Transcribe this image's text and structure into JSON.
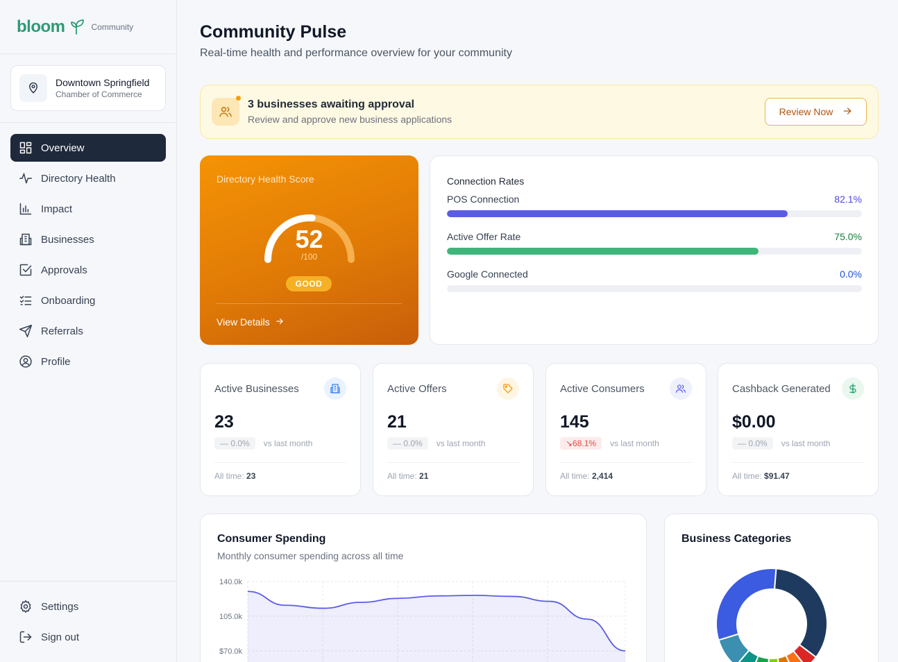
{
  "brand": {
    "name": "bloom",
    "tag": "Community"
  },
  "org": {
    "name": "Downtown Springfield",
    "subtitle": "Chamber of Commerce"
  },
  "nav": {
    "items": [
      {
        "label": "Overview",
        "icon": "grid-icon",
        "active": true
      },
      {
        "label": "Directory Health",
        "icon": "pulse-icon",
        "active": false
      },
      {
        "label": "Impact",
        "icon": "bar-chart-icon",
        "active": false
      },
      {
        "label": "Businesses",
        "icon": "building-icon",
        "active": false
      },
      {
        "label": "Approvals",
        "icon": "check-square-icon",
        "active": false
      },
      {
        "label": "Onboarding",
        "icon": "list-check-icon",
        "active": false
      },
      {
        "label": "Referrals",
        "icon": "send-icon",
        "active": false
      },
      {
        "label": "Profile",
        "icon": "user-circle-icon",
        "active": false
      }
    ],
    "bottom": [
      {
        "label": "Settings",
        "icon": "gear-icon"
      },
      {
        "label": "Sign out",
        "icon": "sign-out-icon"
      }
    ]
  },
  "header": {
    "title": "Community Pulse",
    "subtitle": "Real-time health and performance overview for your community"
  },
  "alert": {
    "title": "3 businesses awaiting approval",
    "subtitle": "Review and approve new business applications",
    "button": "Review Now"
  },
  "health": {
    "label": "Directory Health Score",
    "score": "52",
    "max": "/100",
    "score_fraction": 0.52,
    "rating": "GOOD",
    "link": "View Details"
  },
  "connections": {
    "title": "Connection Rates",
    "rows": [
      {
        "label": "POS Connection",
        "value": "82.1%",
        "fraction": 0.821,
        "color": "#5b5ce6",
        "value_color": "#4f46e5"
      },
      {
        "label": "Active Offer Rate",
        "value": "75.0%",
        "fraction": 0.75,
        "color": "#3fb57a",
        "value_color": "#15803d"
      },
      {
        "label": "Google Connected",
        "value": "0.0%",
        "fraction": 0.0,
        "color": "#3b82f6",
        "value_color": "#1d4ed8"
      }
    ]
  },
  "stats": [
    {
      "label": "Active Businesses",
      "value": "23",
      "change": "— 0.0%",
      "trend": "neutral",
      "vs": "vs last month",
      "all_time_label": "All time:",
      "all_time": "23",
      "icon": "building-icon",
      "icon_color": "#3b82f6",
      "icon_bg": "#eaf2fe"
    },
    {
      "label": "Active Offers",
      "value": "21",
      "change": "— 0.0%",
      "trend": "neutral",
      "vs": "vs last month",
      "all_time_label": "All time:",
      "all_time": "21",
      "icon": "tag-icon",
      "icon_color": "#f59e0b",
      "icon_bg": "#fef6e4"
    },
    {
      "label": "Active Consumers",
      "value": "145",
      "change": "↘68.1%",
      "trend": "neg",
      "vs": "vs last month",
      "all_time_label": "All time:",
      "all_time": "2,414",
      "icon": "users-icon",
      "icon_color": "#6366f1",
      "icon_bg": "#eef0fb"
    },
    {
      "label": "Cashback Generated",
      "value": "$0.00",
      "change": "— 0.0%",
      "trend": "neutral",
      "vs": "vs last month",
      "all_time_label": "All time:",
      "all_time": "$91.47",
      "icon": "dollar-icon",
      "icon_color": "#22a06b",
      "icon_bg": "#e9f7ef"
    }
  ],
  "spending": {
    "title": "Consumer Spending",
    "subtitle": "Monthly consumer spending across all time"
  },
  "categories": {
    "title": "Business Categories"
  },
  "chart_data": [
    {
      "type": "area",
      "title": "Consumer Spending",
      "subtitle": "Monthly consumer spending across all time",
      "ytick_labels": [
        "140.0k",
        "105.0k",
        "$70.0k"
      ],
      "ylim": [
        70000,
        140000
      ],
      "series": [
        {
          "values": [
            130000,
            116000,
            113000,
            119000,
            123000,
            125500,
            126000,
            125000,
            120000,
            102000,
            70000
          ]
        }
      ],
      "color": "#5b5ce6",
      "grid": true
    },
    {
      "type": "pie",
      "title": "Business Categories",
      "slices": [
        {
          "value": 34,
          "color": "#1e3a5f"
        },
        {
          "value": 4,
          "color": "#dc2626"
        },
        {
          "value": 4,
          "color": "#f97316"
        },
        {
          "value": 4,
          "color": "#d97706"
        },
        {
          "value": 4,
          "color": "#84cc16"
        },
        {
          "value": 5,
          "color": "#16a34a"
        },
        {
          "value": 5,
          "color": "#0d9488"
        },
        {
          "value": 9,
          "color": "#3b8fb0"
        },
        {
          "value": 31,
          "color": "#3b5be0"
        }
      ]
    }
  ]
}
